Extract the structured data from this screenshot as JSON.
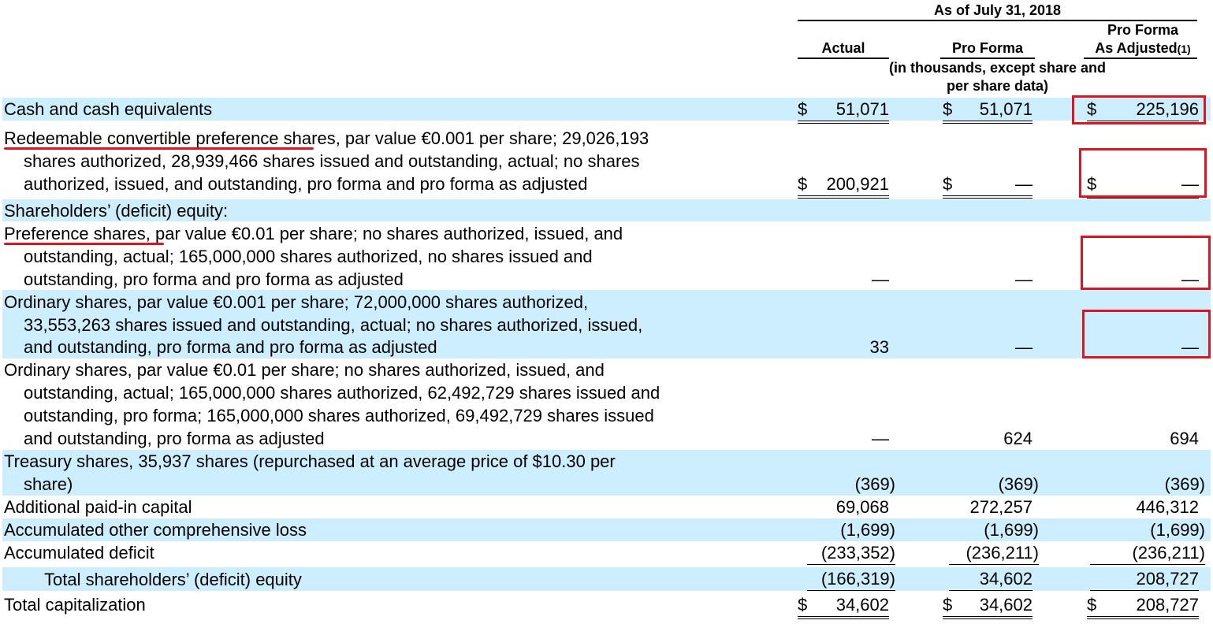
{
  "header": {
    "period": "As of July 31, 2018",
    "col_actual": "Actual",
    "col_pro_forma": "Pro Forma",
    "col_adjusted_line1": "Pro Forma",
    "col_adjusted_line2": "As Adjusted",
    "col_adjusted_note": "(1)",
    "units_line1": "(in thousands, except share and",
    "units_line2": "per share data)"
  },
  "rows": {
    "cash": {
      "label": "Cash and cash equivalents",
      "cur": "$",
      "actual": "51,071",
      "pro_forma": "51,071",
      "adjusted": "225,196"
    },
    "redeemable": {
      "lead": "Redeemable convertible preference",
      "line1_rest": " shares, par value €0.001 per share; 29,026,193",
      "line2": "shares authorized, 28,939,466 shares issued and outstanding, actual; no shares",
      "line3": "authorized, issued, and outstanding, pro forma and pro forma as adjusted",
      "cur": "$",
      "actual": "200,921",
      "pro_forma": "—",
      "adjusted": "—"
    },
    "equity_heading": {
      "label": "Shareholders’ (deficit) equity:"
    },
    "preference": {
      "lead": "Preference shares",
      "line1_rest": ", par value €0.01 per share; no shares authorized, issued, and",
      "line2": "outstanding, actual; 165,000,000 shares authorized, no shares issued and",
      "line3": "outstanding, pro forma and pro forma as adjusted",
      "actual": "—",
      "pro_forma": "—",
      "adjusted": "—"
    },
    "ordinary_001": {
      "line1": "Ordinary shares, par value €0.001 per share; 72,000,000 shares authorized,",
      "line2": "33,553,263 shares issued and outstanding, actual; no shares authorized, issued,",
      "line3": "and outstanding, pro forma and pro forma as adjusted",
      "actual": "33",
      "pro_forma": "—",
      "adjusted": "—"
    },
    "ordinary_01": {
      "line1": "Ordinary shares, par value €0.01 per share; no shares authorized, issued, and",
      "line2": "outstanding, actual; 165,000,000 shares authorized, 62,492,729 shares issued and",
      "line3": "outstanding, pro forma; 165,000,000 shares authorized, 69,492,729 shares issued",
      "line4": "and outstanding, pro forma as adjusted",
      "actual": "—",
      "pro_forma": "624",
      "adjusted": "694"
    },
    "treasury": {
      "line1": "Treasury shares, 35,937 shares (repurchased at an average price of $10.30 per",
      "line2": "share)",
      "actual": "(369)",
      "pro_forma": "(369)",
      "adjusted": "(369)"
    },
    "apic": {
      "label": "Additional paid-in capital",
      "actual": "69,068",
      "pro_forma": "272,257",
      "adjusted": "446,312"
    },
    "aocl": {
      "label": "Accumulated other comprehensive loss",
      "actual": "(1,699)",
      "pro_forma": "(1,699)",
      "adjusted": "(1,699)"
    },
    "deficit": {
      "label": "Accumulated deficit",
      "actual": "(233,352)",
      "pro_forma": "(236,211)",
      "adjusted": "(236,211)"
    },
    "total_equity": {
      "label": "Total shareholders’ (deficit) equity",
      "actual": "(166,319)",
      "pro_forma": "34,602",
      "adjusted": "208,727"
    },
    "total_cap": {
      "label": "Total capitalization",
      "cur": "$",
      "actual": "34,602",
      "pro_forma": "34,602",
      "adjusted": "208,727"
    }
  },
  "annotation_color": "#e0141e",
  "band_color": "#cceeff"
}
